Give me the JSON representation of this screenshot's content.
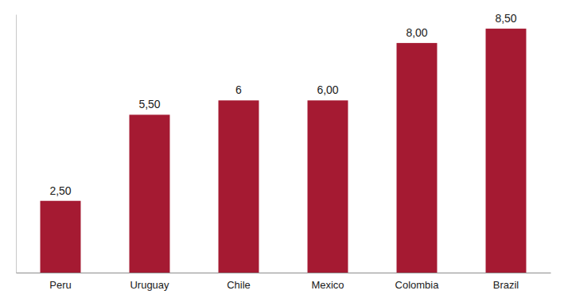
{
  "chart_data": {
    "type": "bar",
    "categories": [
      "Peru",
      "Uruguay",
      "Chile",
      "Mexico",
      "Colombia",
      "Brazil"
    ],
    "values": [
      2.5,
      5.5,
      6,
      6,
      8,
      8.5
    ],
    "value_labels": [
      "2,50",
      "5,50",
      "6",
      "6,00",
      "8,00",
      "8,50"
    ],
    "color": "#a51a32",
    "ylim": [
      0,
      9
    ],
    "data_labels": true,
    "tick_labels": "x",
    "grid": false
  }
}
